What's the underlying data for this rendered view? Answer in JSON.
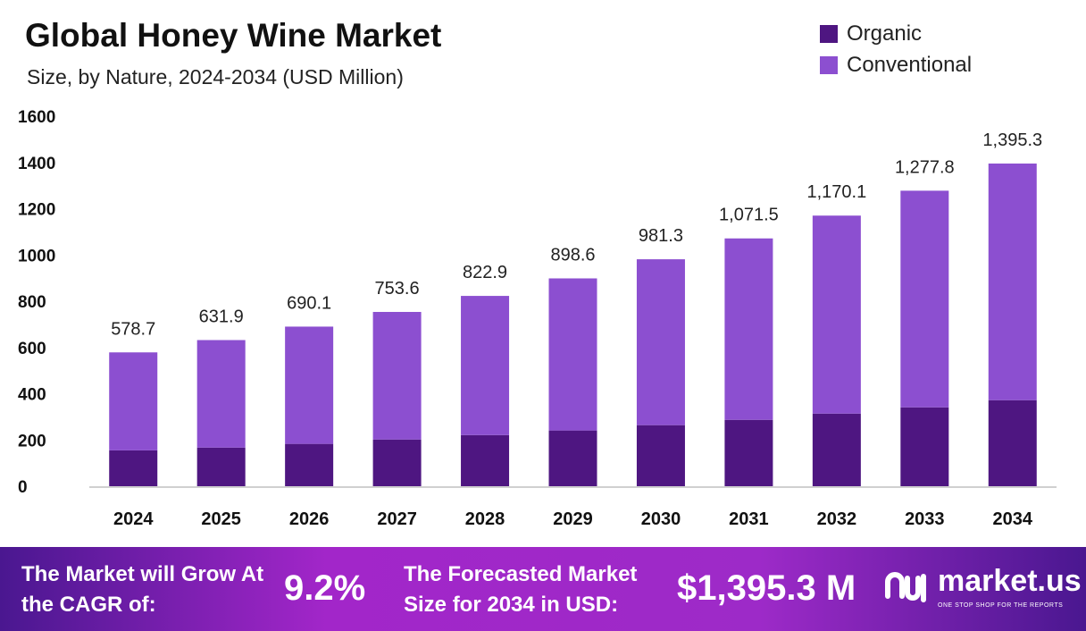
{
  "chart_data": {
    "type": "bar",
    "stacked": true,
    "title": "Global Honey Wine Market",
    "subtitle": "Size, by Nature, 2024-2034 (USD Million)",
    "categories": [
      "2024",
      "2025",
      "2026",
      "2027",
      "2028",
      "2029",
      "2030",
      "2031",
      "2032",
      "2033",
      "2034"
    ],
    "series": [
      {
        "name": "Organic",
        "color": "#4e1681",
        "values": [
          155,
          167,
          183,
          202,
          221,
          241,
          264,
          287,
          314,
          341,
          372
        ]
      },
      {
        "name": "Conventional",
        "color": "#8c4fd0",
        "values": [
          423.7,
          464.9,
          507.1,
          551.6,
          601.9,
          657.6,
          717.3,
          784.5,
          856.1,
          936.8,
          1023.3
        ]
      }
    ],
    "totals": [
      578.7,
      631.9,
      690.1,
      753.6,
      822.9,
      898.6,
      981.3,
      1071.5,
      1170.1,
      1277.8,
      1395.3
    ],
    "total_labels": [
      "578.7",
      "631.9",
      "690.1",
      "753.6",
      "822.9",
      "898.6",
      "981.3",
      "1,071.5",
      "1,170.1",
      "1,277.8",
      "1,395.3"
    ],
    "yticks": [
      "0",
      "200",
      "400",
      "600",
      "800",
      "1000",
      "1200",
      "1400",
      "1600"
    ],
    "ylim": [
      0,
      1600
    ],
    "grid": false,
    "legend_position": "top-right"
  },
  "banner": {
    "cagr_label": "The Market will Grow At the CAGR of:",
    "cagr_value": "9.2%",
    "forecast_label": "The Forecasted Market Size for 2034 in USD:",
    "forecast_value": "$1,395.3 M",
    "logo": "market.us",
    "logo_tagline": "ONE STOP SHOP FOR THE REPORTS"
  }
}
